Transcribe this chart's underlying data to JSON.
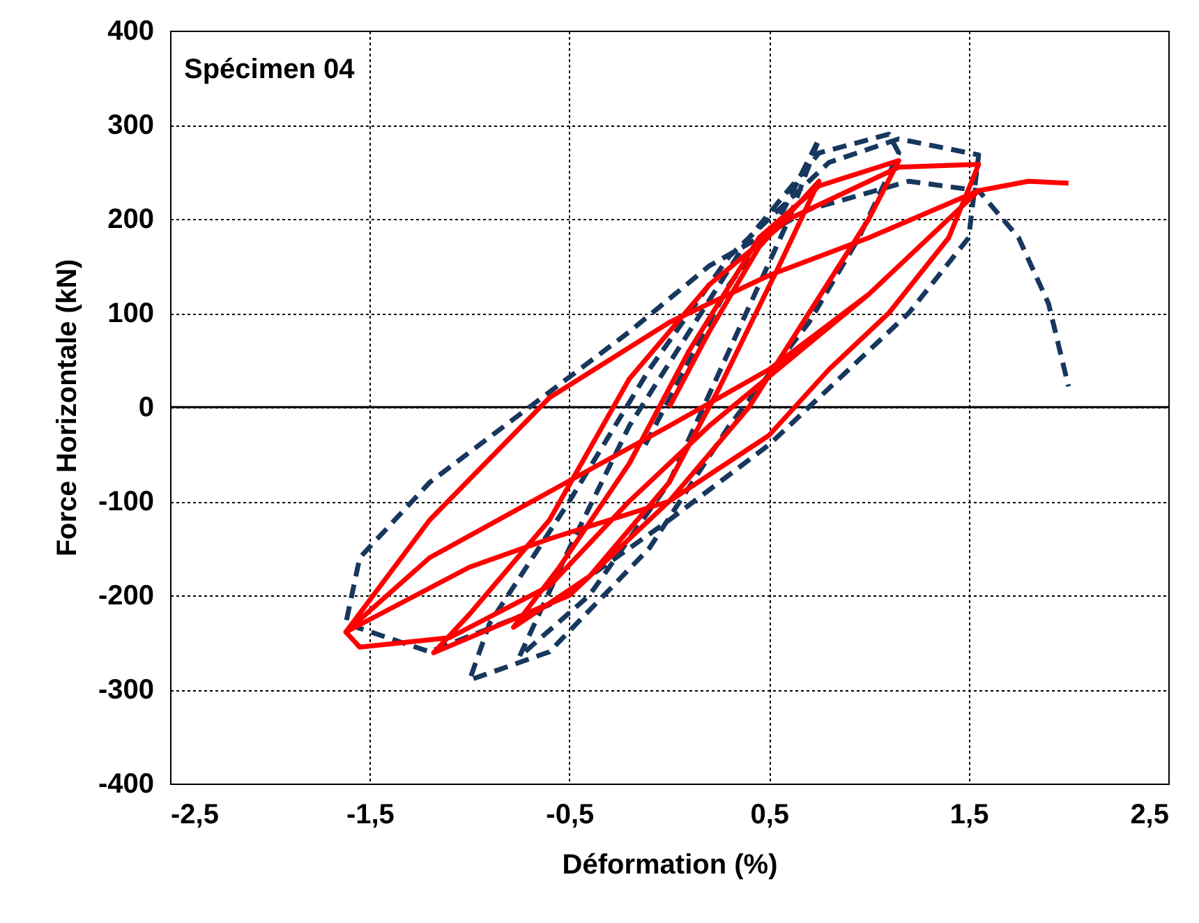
{
  "chart_data": {
    "type": "line",
    "title": "Spécimen 04",
    "xlabel": "Déformation (%)",
    "ylabel": "Force Horizontale (kN)",
    "xlim": [
      -2.5,
      2.5
    ],
    "xticks": [
      {
        "value": -2.5,
        "label": "-2,5"
      },
      {
        "value": -1.5,
        "label": "-1,5"
      },
      {
        "value": -0.5,
        "label": "-0,5"
      },
      {
        "value": 0.5,
        "label": "0,5"
      },
      {
        "value": 1.5,
        "label": "1,5"
      },
      {
        "value": 2.5,
        "label": "2,5"
      }
    ],
    "ylim": [
      -400,
      400
    ],
    "yticks": [
      -400,
      -300,
      -200,
      -100,
      0,
      100,
      200,
      300,
      400
    ],
    "grid": true,
    "legend": false,
    "marker": "none",
    "ref_lines": [
      {
        "axis": "y",
        "value": 0,
        "color": "#000000",
        "line_style": "solid"
      }
    ],
    "series": [
      {
        "color": "#17375e",
        "line_style": "dashed",
        "x": [
          -0.12,
          0.3,
          0.55,
          0.75,
          0.6,
          0.3,
          0,
          -0.4,
          -0.75,
          -0.5,
          -0.2,
          0.1,
          0.4,
          0.75,
          1.1,
          1.15,
          0.95,
          0.7,
          0.3,
          -0.1,
          -0.6,
          -1.0,
          -0.9,
          -0.5,
          -0.1,
          0.3,
          0.8,
          1.15,
          1.55,
          1.5,
          1.2,
          0.9,
          0.5,
          0.0,
          -0.6,
          -1.2,
          -1.62,
          -1.55,
          -1.2,
          -0.7,
          -0.2,
          0.2,
          0.7,
          1.2,
          1.55,
          1.75,
          1.9,
          2.0
        ],
        "values": [
          -40,
          130,
          200,
          285,
          200,
          60,
          -80,
          -200,
          -265,
          -150,
          -20,
          80,
          180,
          270,
          290,
          270,
          180,
          90,
          -20,
          -150,
          -260,
          -290,
          -230,
          -100,
          40,
          160,
          260,
          285,
          268,
          180,
          100,
          40,
          -40,
          -120,
          -210,
          -260,
          -230,
          -160,
          -80,
          0,
          80,
          150,
          210,
          240,
          230,
          180,
          110,
          22
        ]
      },
      {
        "color": "#ff0000",
        "line_style": "solid",
        "x": [
          0,
          0.2,
          0.45,
          0.75,
          0.55,
          0.25,
          0,
          -0.4,
          -0.78,
          -0.55,
          -0.2,
          0.1,
          0.45,
          0.75,
          1.15,
          1.0,
          0.7,
          0.4,
          0.0,
          -0.5,
          -1.18,
          -1.0,
          -0.6,
          -0.2,
          0.2,
          0.6,
          1.15,
          1.55,
          1.4,
          1.1,
          0.8,
          0.5,
          0.0,
          -0.6,
          -1.0,
          -1.62,
          -1.55,
          -1.1,
          -0.6,
          -0.2,
          0.2,
          0.6,
          1.0,
          1.55,
          1.4,
          1.0,
          0.5,
          0.0,
          -0.6,
          -1.2,
          -1.62,
          -1.2,
          -0.6,
          0.0,
          0.5,
          1.0,
          1.55,
          1.8,
          2.0
        ],
        "values": [
          0,
          80,
          170,
          240,
          150,
          20,
          -80,
          -180,
          -234,
          -170,
          -60,
          60,
          180,
          235,
          262,
          200,
          100,
          0,
          -100,
          -200,
          -261,
          -220,
          -120,
          30,
          130,
          200,
          255,
          258,
          180,
          100,
          40,
          -30,
          -100,
          -140,
          -170,
          -239,
          -255,
          -245,
          -190,
          -100,
          -20,
          50,
          120,
          230,
          200,
          120,
          40,
          -20,
          -90,
          -160,
          -239,
          -120,
          10,
          90,
          140,
          180,
          230,
          240,
          238
        ]
      }
    ]
  }
}
